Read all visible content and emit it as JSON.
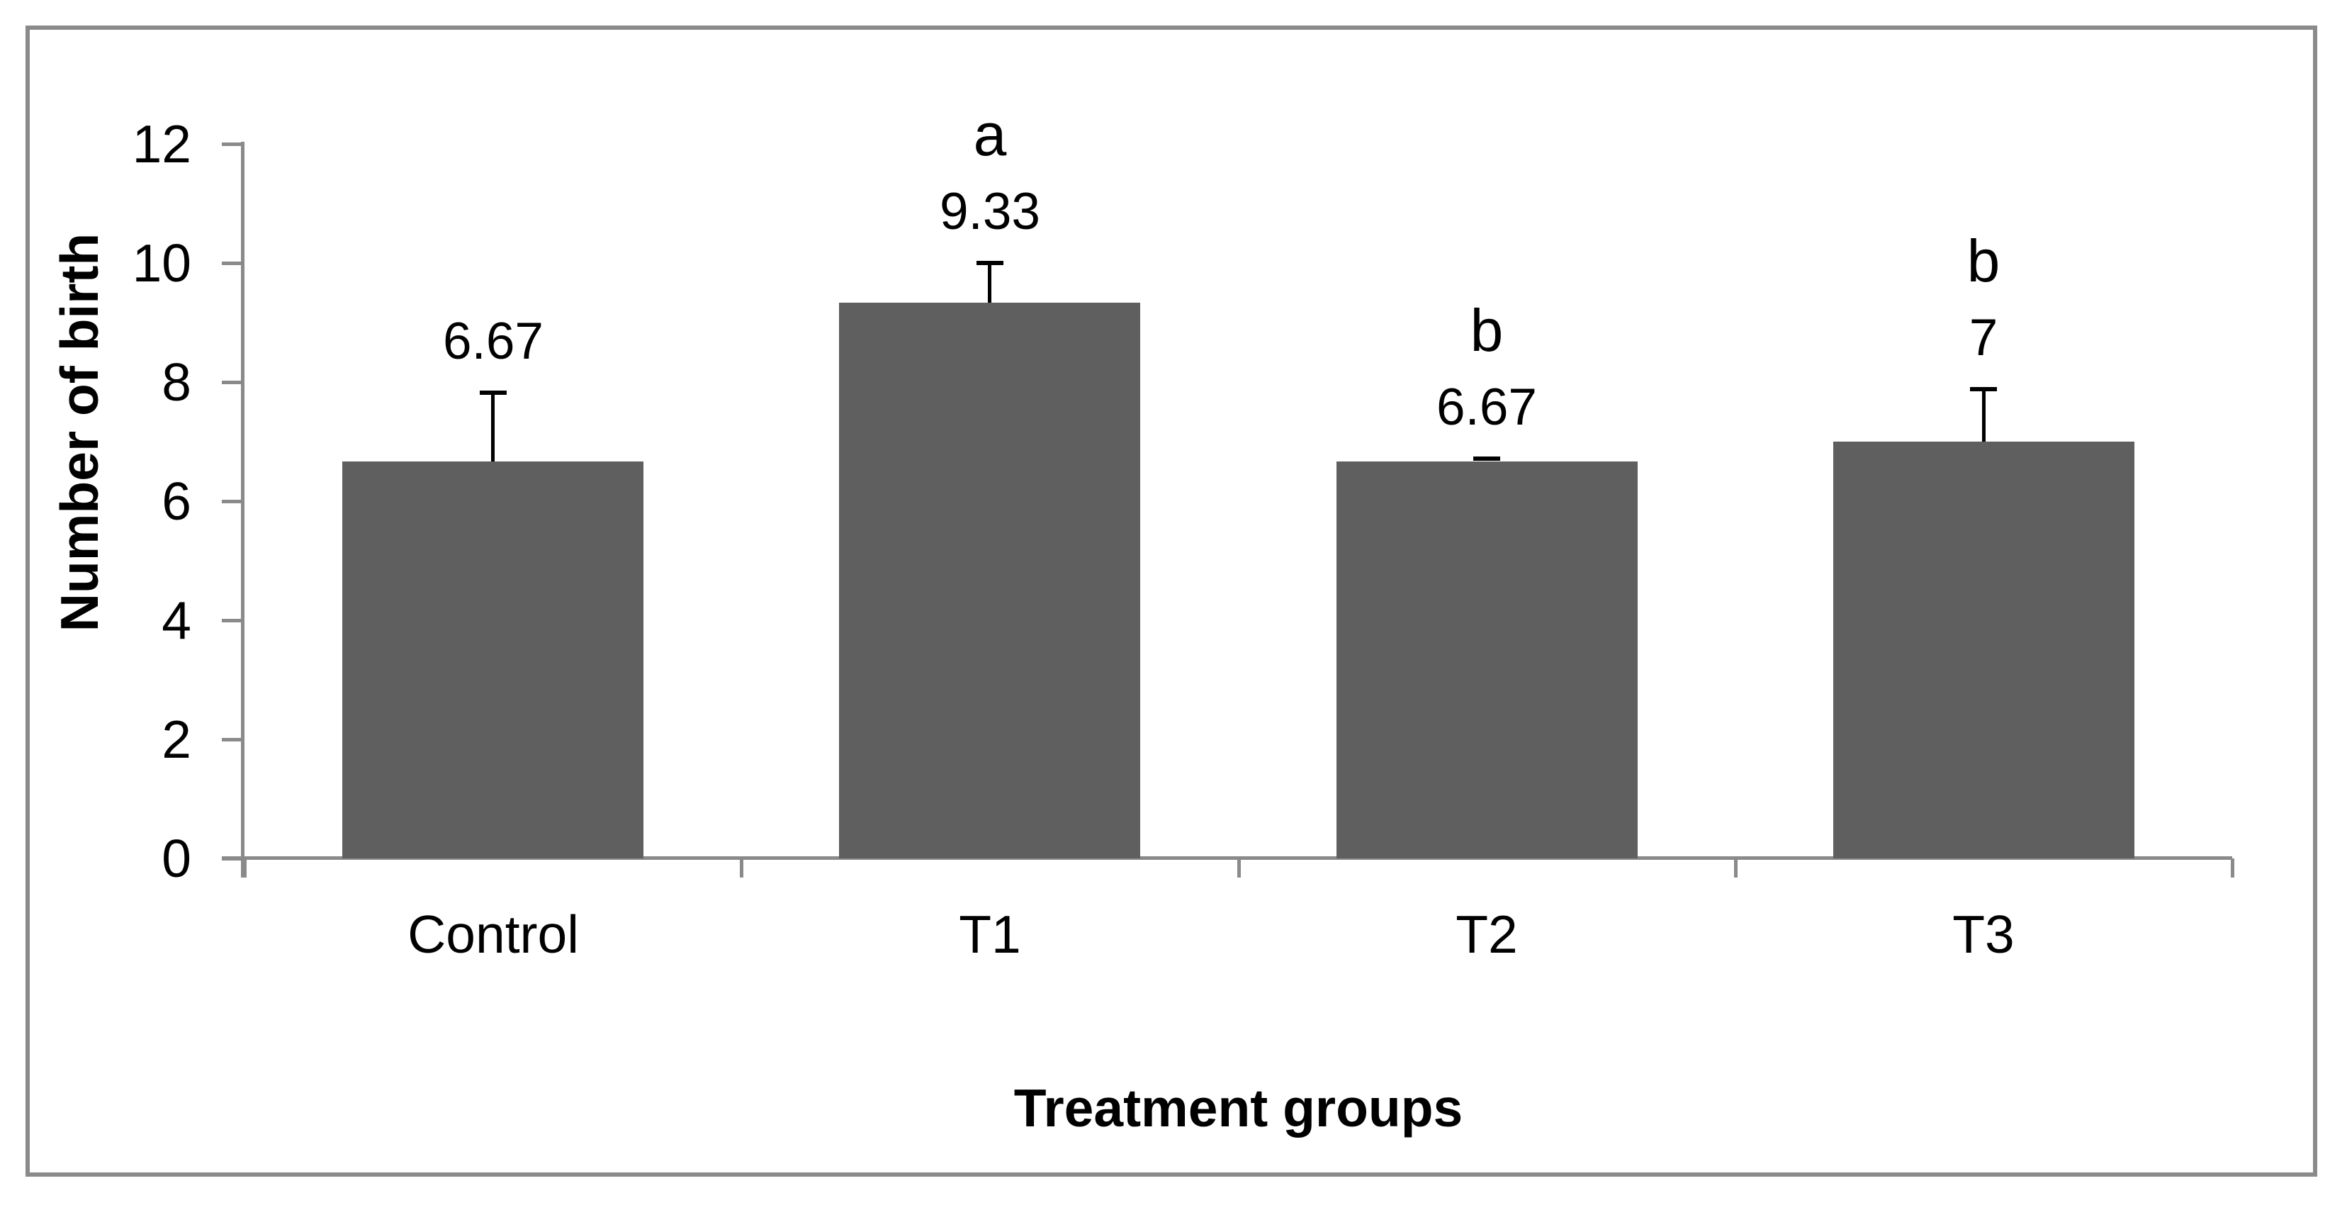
{
  "figure": {
    "background": "#ffffff",
    "border_color": "#8a8a8a"
  },
  "chart_data": {
    "type": "bar",
    "title": "",
    "xlabel": "Treatment groups",
    "ylabel": "Number of birth",
    "categories": [
      "Control",
      "T1",
      "T2",
      "T3"
    ],
    "values": [
      6.67,
      9.33,
      6.67,
      7
    ],
    "value_labels": [
      "6.67",
      "9.33",
      "6.67",
      "7"
    ],
    "significance_letters": [
      "",
      "a",
      "b",
      "b"
    ],
    "error_bars_upper": [
      1.15,
      0.67,
      0.04,
      0.88
    ],
    "y_ticks": [
      0,
      2,
      4,
      6,
      8,
      10,
      12
    ],
    "ylim": [
      0,
      12
    ],
    "grid": false,
    "legend": "none",
    "bar_color": "#5f5f5f",
    "axis_color": "#8a8a8a",
    "error_bar_color": "#000000",
    "text_color": "#000000"
  }
}
